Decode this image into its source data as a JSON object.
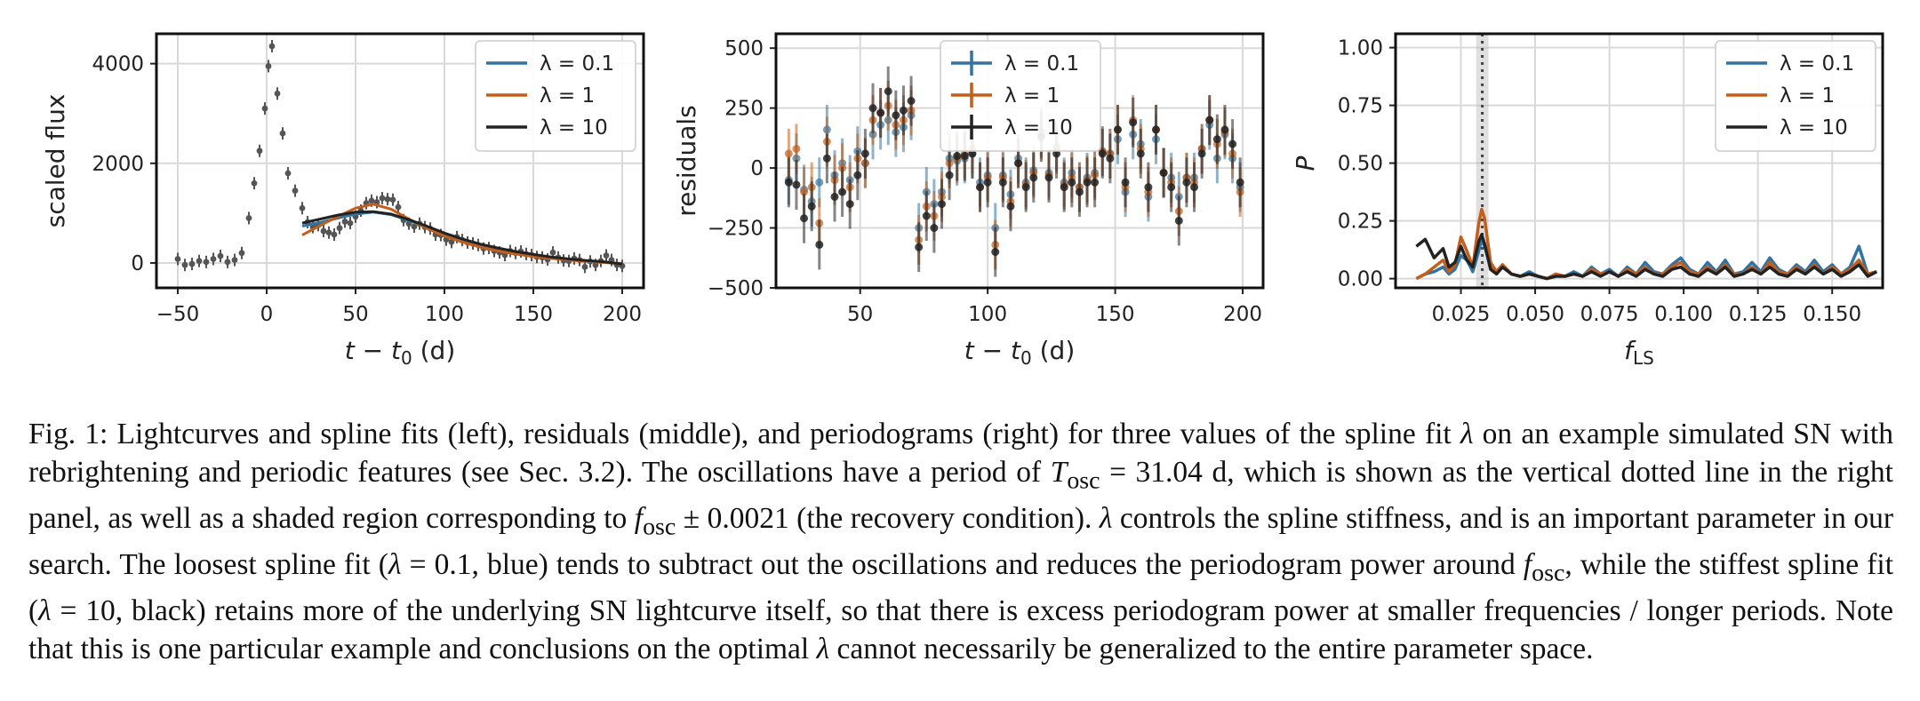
{
  "colors": {
    "blue": "#3274a1",
    "orange": "#c45e1a",
    "black": "#222222",
    "grid": "#d9d9d9",
    "data": "#555555"
  },
  "legend": {
    "entries": [
      "λ = 0.1",
      "λ = 1",
      "λ = 10"
    ]
  },
  "chart_data": [
    {
      "type": "scatter",
      "panel": "left",
      "xlabel": "t − t₀ (d)",
      "ylabel": "scaled flux",
      "xlim": [
        -62,
        212
      ],
      "ylim": [
        -500,
        4600
      ],
      "xticks": [
        -50,
        0,
        50,
        100,
        150,
        200
      ],
      "yticks": [
        0,
        2000,
        4000
      ],
      "grid": true,
      "legend_position": "top-right",
      "points": {
        "x": [
          -50,
          -46,
          -42,
          -38,
          -34,
          -30,
          -26,
          -22,
          -18,
          -14,
          -10,
          -7,
          -4,
          -1,
          1,
          3,
          6,
          9,
          12,
          16,
          20,
          23,
          26,
          29,
          32,
          35,
          38,
          41,
          44,
          47,
          50,
          53,
          56,
          59,
          62,
          65,
          68,
          71,
          74,
          77,
          80,
          83,
          86,
          89,
          92,
          95,
          98,
          101,
          104,
          107,
          110,
          113,
          116,
          119,
          122,
          125,
          128,
          131,
          134,
          137,
          140,
          143,
          146,
          149,
          152,
          155,
          158,
          161,
          164,
          167,
          170,
          173,
          176,
          179,
          182,
          185,
          188,
          191,
          194,
          197,
          200
        ],
        "y": [
          80,
          -40,
          -20,
          40,
          20,
          80,
          140,
          20,
          60,
          200,
          900,
          1600,
          2250,
          3100,
          3950,
          4350,
          3400,
          2600,
          1800,
          1450,
          1100,
          820,
          720,
          760,
          640,
          610,
          570,
          700,
          830,
          800,
          930,
          1050,
          1200,
          1250,
          1220,
          1300,
          1280,
          1270,
          1120,
          860,
          790,
          730,
          790,
          720,
          690,
          570,
          560,
          470,
          420,
          520,
          460,
          410,
          390,
          360,
          290,
          300,
          240,
          210,
          160,
          240,
          200,
          230,
          180,
          160,
          120,
          110,
          70,
          210,
          110,
          50,
          40,
          90,
          60,
          -80,
          30,
          -40,
          40,
          150,
          60,
          -40,
          -60
        ]
      },
      "series": [
        {
          "name": "λ = 0.1",
          "x": [
            20,
            30,
            40,
            50,
            60,
            70,
            80,
            90,
            100,
            110,
            120,
            130,
            140,
            150,
            160,
            170,
            180,
            190,
            200
          ],
          "y": [
            740,
            810,
            900,
            980,
            1020,
            970,
            850,
            720,
            580,
            460,
            360,
            280,
            220,
            160,
            110,
            70,
            40,
            10,
            -20
          ]
        },
        {
          "name": "λ = 1",
          "x": [
            20,
            30,
            40,
            50,
            60,
            70,
            80,
            90,
            100,
            110,
            120,
            130,
            140,
            150,
            160,
            170,
            180,
            190,
            200
          ],
          "y": [
            560,
            750,
            930,
            1100,
            1180,
            1080,
            880,
            700,
            540,
            420,
            320,
            240,
            180,
            130,
            90,
            60,
            30,
            10,
            -10
          ]
        },
        {
          "name": "λ = 10",
          "x": [
            20,
            30,
            40,
            50,
            60,
            70,
            80,
            90,
            100,
            110,
            120,
            130,
            140,
            150,
            160,
            170,
            180,
            190,
            200
          ],
          "y": [
            800,
            880,
            960,
            1020,
            1030,
            980,
            870,
            740,
            600,
            480,
            380,
            300,
            230,
            170,
            120,
            80,
            50,
            20,
            -20
          ]
        }
      ]
    },
    {
      "type": "scatter",
      "panel": "middle",
      "xlabel": "t − t₀ (d)",
      "ylabel": "residuals",
      "xlim": [
        17,
        208
      ],
      "ylim": [
        -500,
        560
      ],
      "xticks": [
        50,
        100,
        150,
        200
      ],
      "yticks": [
        -500,
        -250,
        0,
        250,
        500
      ],
      "grid": true,
      "legend_position": "top-center",
      "series": [
        {
          "name": "λ = 0.1",
          "x": [
            22,
            25,
            28,
            31,
            34,
            37,
            40,
            43,
            46,
            49,
            52,
            55,
            58,
            61,
            64,
            67,
            70,
            73,
            76,
            79,
            82,
            85,
            88,
            91,
            94,
            97,
            100,
            103,
            106,
            109,
            112,
            115,
            118,
            121,
            124,
            127,
            130,
            133,
            136,
            139,
            142,
            145,
            148,
            151,
            154,
            157,
            160,
            163,
            166,
            169,
            172,
            175,
            178,
            181,
            184,
            187,
            190,
            193,
            196,
            199
          ],
          "y": [
            -50,
            40,
            -90,
            -140,
            -60,
            160,
            -30,
            20,
            -50,
            70,
            20,
            140,
            180,
            200,
            150,
            170,
            220,
            -250,
            -100,
            -150,
            -100,
            40,
            30,
            40,
            60,
            -60,
            -30,
            -250,
            -30,
            -110,
            40,
            -60,
            -10,
            150,
            -20,
            90,
            -60,
            -20,
            -80,
            -40,
            -20,
            70,
            60,
            120,
            -100,
            140,
            100,
            -120,
            120,
            -20,
            -40,
            -120,
            -40,
            -40,
            80,
            180,
            40,
            140,
            40,
            -80
          ]
        },
        {
          "name": "λ = 1",
          "x": [
            22,
            25,
            28,
            31,
            34,
            37,
            40,
            43,
            46,
            49,
            52,
            55,
            58,
            61,
            64,
            67,
            70,
            73,
            76,
            79,
            82,
            85,
            88,
            91,
            94,
            97,
            100,
            103,
            106,
            109,
            112,
            115,
            118,
            121,
            124,
            127,
            130,
            133,
            136,
            139,
            142,
            145,
            148,
            151,
            154,
            157,
            160,
            163,
            166,
            169,
            172,
            175,
            178,
            181,
            184,
            187,
            190,
            193,
            196,
            199
          ],
          "y": [
            60,
            80,
            -100,
            -80,
            -230,
            110,
            -50,
            0,
            -80,
            40,
            20,
            200,
            230,
            260,
            180,
            200,
            240,
            -300,
            -160,
            -200,
            -120,
            20,
            40,
            60,
            80,
            -80,
            -40,
            -320,
            -40,
            -140,
            20,
            -70,
            -20,
            140,
            -30,
            80,
            -70,
            -40,
            -80,
            -50,
            -30,
            70,
            60,
            160,
            -80,
            200,
            80,
            -100,
            160,
            -20,
            -60,
            -180,
            -40,
            -60,
            80,
            200,
            100,
            150,
            60,
            -100
          ]
        },
        {
          "name": "λ = 10",
          "x": [
            22,
            25,
            28,
            31,
            34,
            37,
            40,
            43,
            46,
            49,
            52,
            55,
            58,
            61,
            64,
            67,
            70,
            73,
            76,
            79,
            82,
            85,
            88,
            91,
            94,
            97,
            100,
            103,
            106,
            109,
            112,
            115,
            118,
            121,
            124,
            127,
            130,
            133,
            136,
            139,
            142,
            145,
            148,
            151,
            154,
            157,
            160,
            163,
            166,
            169,
            172,
            175,
            178,
            181,
            184,
            187,
            190,
            193,
            196,
            199
          ],
          "y": [
            -60,
            -70,
            -210,
            -160,
            -320,
            40,
            -120,
            -100,
            -150,
            -30,
            60,
            250,
            230,
            320,
            220,
            240,
            280,
            -330,
            -200,
            -250,
            -150,
            -30,
            50,
            50,
            60,
            -80,
            -60,
            -350,
            -60,
            -160,
            20,
            -80,
            -40,
            130,
            -40,
            60,
            -80,
            -60,
            -100,
            -60,
            -60,
            60,
            40,
            160,
            -60,
            190,
            60,
            -80,
            160,
            -20,
            -80,
            -220,
            -60,
            -80,
            60,
            200,
            120,
            160,
            100,
            -60
          ]
        }
      ]
    },
    {
      "type": "line",
      "panel": "right",
      "xlabel": "f_LS",
      "ylabel": "P",
      "xlim": [
        0.003,
        0.167
      ],
      "ylim": [
        -0.04,
        1.06
      ],
      "xticks": [
        0.025,
        0.05,
        0.075,
        0.1,
        0.125,
        0.15
      ],
      "yticks": [
        0.0,
        0.25,
        0.5,
        0.75,
        1.0
      ],
      "grid": true,
      "legend_position": "top-right",
      "vline_x": 0.0322,
      "shaded_band": [
        0.0301,
        0.0343
      ],
      "x": [
        0.01,
        0.013,
        0.016,
        0.019,
        0.021,
        0.023,
        0.025,
        0.027,
        0.029,
        0.031,
        0.032,
        0.033,
        0.035,
        0.037,
        0.039,
        0.042,
        0.045,
        0.048,
        0.051,
        0.054,
        0.057,
        0.06,
        0.063,
        0.066,
        0.069,
        0.072,
        0.075,
        0.078,
        0.081,
        0.084,
        0.087,
        0.09,
        0.093,
        0.096,
        0.099,
        0.102,
        0.105,
        0.108,
        0.111,
        0.114,
        0.117,
        0.12,
        0.123,
        0.126,
        0.129,
        0.132,
        0.135,
        0.138,
        0.141,
        0.144,
        0.147,
        0.15,
        0.153,
        0.156,
        0.159,
        0.162,
        0.165
      ],
      "series": [
        {
          "name": "λ = 0.1",
          "y": [
            0.0,
            0.02,
            0.03,
            0.05,
            0.02,
            0.04,
            0.1,
            0.08,
            0.03,
            0.12,
            0.17,
            0.14,
            0.05,
            0.03,
            0.06,
            0.02,
            0.01,
            0.03,
            0.01,
            0.0,
            0.02,
            0.01,
            0.03,
            0.01,
            0.05,
            0.02,
            0.04,
            0.01,
            0.05,
            0.02,
            0.07,
            0.03,
            0.02,
            0.06,
            0.09,
            0.04,
            0.02,
            0.07,
            0.03,
            0.08,
            0.02,
            0.03,
            0.07,
            0.03,
            0.09,
            0.04,
            0.02,
            0.06,
            0.03,
            0.08,
            0.03,
            0.06,
            0.02,
            0.05,
            0.14,
            0.02,
            0.03
          ]
        },
        {
          "name": "λ = 1",
          "y": [
            0.0,
            0.02,
            0.05,
            0.08,
            0.03,
            0.06,
            0.18,
            0.12,
            0.05,
            0.24,
            0.3,
            0.26,
            0.07,
            0.03,
            0.06,
            0.02,
            0.01,
            0.02,
            0.01,
            0.0,
            0.02,
            0.01,
            0.02,
            0.01,
            0.04,
            0.02,
            0.03,
            0.01,
            0.04,
            0.02,
            0.05,
            0.02,
            0.02,
            0.05,
            0.07,
            0.03,
            0.02,
            0.05,
            0.02,
            0.06,
            0.02,
            0.02,
            0.05,
            0.02,
            0.07,
            0.03,
            0.02,
            0.05,
            0.02,
            0.06,
            0.02,
            0.05,
            0.02,
            0.04,
            0.08,
            0.02,
            0.03
          ]
        },
        {
          "name": "λ = 10",
          "y": [
            0.14,
            0.17,
            0.09,
            0.13,
            0.05,
            0.07,
            0.14,
            0.08,
            0.05,
            0.16,
            0.19,
            0.15,
            0.04,
            0.02,
            0.05,
            0.02,
            0.01,
            0.02,
            0.01,
            0.0,
            0.01,
            0.01,
            0.02,
            0.01,
            0.03,
            0.01,
            0.03,
            0.01,
            0.03,
            0.01,
            0.04,
            0.02,
            0.01,
            0.04,
            0.05,
            0.02,
            0.01,
            0.04,
            0.02,
            0.05,
            0.01,
            0.02,
            0.04,
            0.02,
            0.05,
            0.02,
            0.01,
            0.04,
            0.02,
            0.05,
            0.02,
            0.04,
            0.01,
            0.03,
            0.06,
            0.01,
            0.03
          ]
        }
      ]
    }
  ],
  "caption": {
    "prefix": "Fig. 1: Lightcurves and spline fits (left), residuals (middle), and periodograms (right) for three values of the spline fit ",
    "lambda_sym": "λ",
    "part2": " on an example simulated SN with rebrightening and periodic features (see Sec. 3.2). The oscillations have a period of ",
    "T_sym": "T",
    "osc_sub": "osc",
    "part3": " = 31.04 d, which is shown as the vertical dotted line in the right panel, as well as a shaded region corresponding to ",
    "f_sym": "f",
    "part4": " ± 0.0021 (the recovery condition). ",
    "part5": " controls the spline stiffness, and is an important parameter in our search. The loosest spline fit (",
    "part6": " = 0.1, blue) tends to subtract out the oscillations and reduces the periodogram power around ",
    "part7": ", while the stiffest spline fit (",
    "part8": " = 10, black) retains more of the underlying SN lightcurve itself, so that there is excess periodogram power at smaller frequencies / longer periods. Note that this is one particular example and conclusions on the optimal ",
    "part9": " cannot necessarily be generalized to the entire parameter space."
  }
}
